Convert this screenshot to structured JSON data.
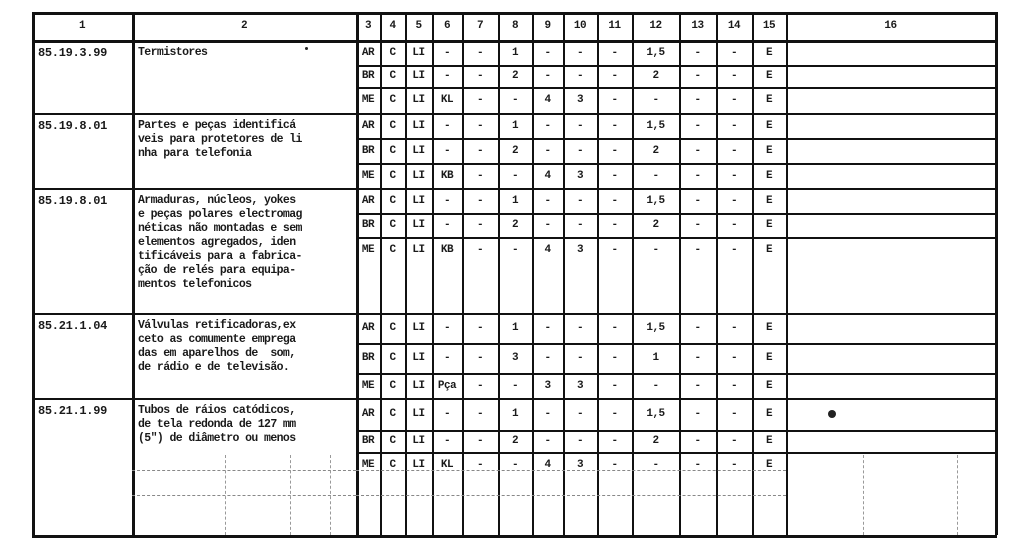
{
  "header": [
    "1",
    "2",
    "3",
    "4",
    "5",
    "6",
    "7",
    "8",
    "9",
    "10",
    "11",
    "12",
    "13",
    "14",
    "15",
    "16"
  ],
  "groups": [
    {
      "code": "85.19.3.99",
      "description": [
        "Termistores"
      ],
      "rows": [
        [
          "AR",
          "C",
          "LI",
          "-",
          "-",
          "1",
          "-",
          "-",
          "-",
          "1,5",
          "-",
          "-",
          "E"
        ],
        [
          "BR",
          "C",
          "LI",
          "-",
          "-",
          "2",
          "-",
          "-",
          "-",
          "2",
          "-",
          "-",
          "E"
        ],
        [
          "ME",
          "C",
          "LI",
          "KL",
          "-",
          "-",
          "4",
          "3",
          "-",
          "-",
          "-",
          "-",
          "E"
        ]
      ]
    },
    {
      "code": "85.19.8.01",
      "description": [
        "Partes e peças identificá",
        "veis para protetores de li",
        "nha para telefonia"
      ],
      "rows": [
        [
          "AR",
          "C",
          "LI",
          "-",
          "-",
          "1",
          "-",
          "-",
          "-",
          "1,5",
          "-",
          "-",
          "E"
        ],
        [
          "BR",
          "C",
          "LI",
          "-",
          "-",
          "2",
          "-",
          "-",
          "-",
          "2",
          "-",
          "-",
          "E"
        ],
        [
          "ME",
          "C",
          "LI",
          "KB",
          "-",
          "-",
          "4",
          "3",
          "-",
          "-",
          "-",
          "-",
          "E"
        ]
      ]
    },
    {
      "code": "85.19.8.01",
      "description": [
        "Armaduras, núcleos, yokes",
        "e peças polares electromag",
        "néticas não montadas e sem",
        "elementos agregados, iden",
        "tificáveis para a fabrica-",
        "ção de relés para equipa-",
        "mentos telefonicos"
      ],
      "rows": [
        [
          "AR",
          "C",
          "LI",
          "-",
          "-",
          "1",
          "-",
          "-",
          "-",
          "1,5",
          "-",
          "-",
          "E"
        ],
        [
          "BR",
          "C",
          "LI",
          "-",
          "-",
          "2",
          "-",
          "-",
          "-",
          "2",
          "-",
          "-",
          "E"
        ],
        [
          "ME",
          "C",
          "LI",
          "KB",
          "-",
          "-",
          "4",
          "3",
          "-",
          "-",
          "-",
          "-",
          "E"
        ]
      ]
    },
    {
      "code": "85.21.1.04",
      "description": [
        "Válvulas retificadoras,ex",
        "ceto as comumente emprega",
        "das em aparelhos de  som,",
        "de rádio e de televisão."
      ],
      "rows": [
        [
          "AR",
          "C",
          "LI",
          "-",
          "-",
          "1",
          "-",
          "-",
          "-",
          "1,5",
          "-",
          "-",
          "E"
        ],
        [
          "BR",
          "C",
          "LI",
          "-",
          "-",
          "3",
          "-",
          "-",
          "-",
          "1",
          "-",
          "-",
          "E"
        ],
        [
          "ME",
          "C",
          "LI",
          "Pça",
          "-",
          "-",
          "3",
          "3",
          "-",
          "-",
          "-",
          "-",
          "E"
        ]
      ]
    },
    {
      "code": "85.21.1.99",
      "description": [
        "Tubos de ráios catódicos,",
        "de tela redonda de 127 mm",
        "(5\") de diâmetro ou menos"
      ],
      "rows": [
        [
          "AR",
          "C",
          "LI",
          "-",
          "-",
          "1",
          "-",
          "-",
          "-",
          "1,5",
          "-",
          "-",
          "E"
        ],
        [
          "BR",
          "C",
          "LI",
          "-",
          "-",
          "2",
          "-",
          "-",
          "-",
          "2",
          "-",
          "-",
          "E"
        ],
        [
          "ME",
          "C",
          "LI",
          "KL",
          "-",
          "-",
          "4",
          "3",
          "-",
          "-",
          "-",
          "-",
          "E"
        ]
      ]
    }
  ]
}
